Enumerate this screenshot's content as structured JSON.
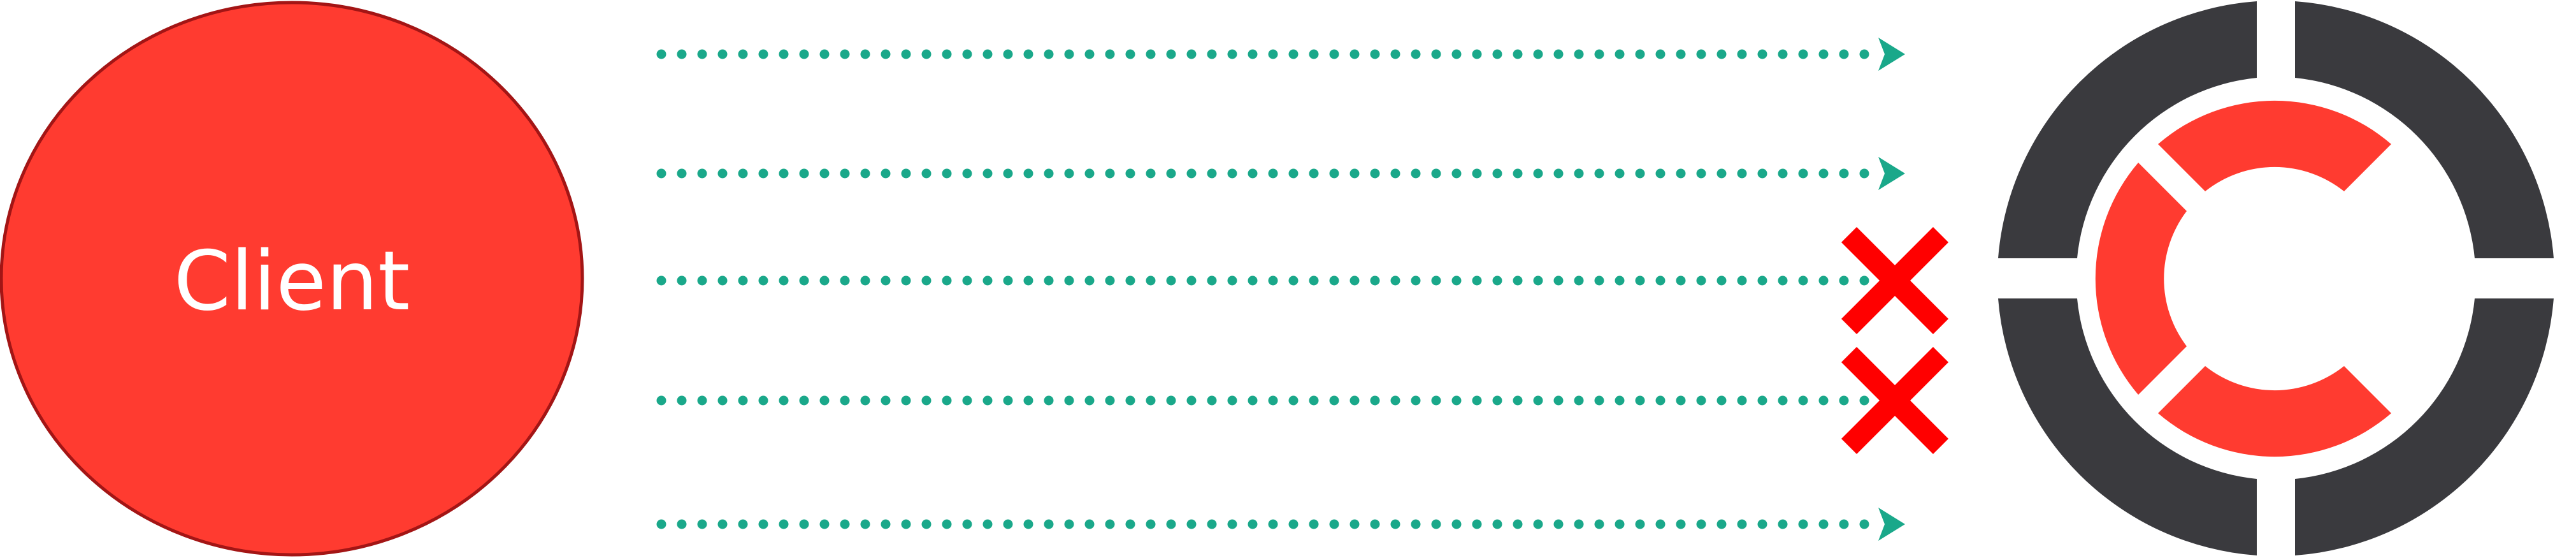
{
  "client": {
    "label": "Client",
    "fill_color": "#ff3b30",
    "stroke_color": "#a31515"
  },
  "requests": [
    {
      "status": "delivered"
    },
    {
      "status": "delivered"
    },
    {
      "status": "failed"
    },
    {
      "status": "failed"
    },
    {
      "status": "delivered"
    }
  ],
  "colors": {
    "arrow": "#1aa88a",
    "failure_mark": "#ff0000",
    "server_ring": "#3a3a3e",
    "server_inner": "#ff3b30"
  },
  "icons": {
    "server": "server-logo-icon",
    "failure": "x-mark-icon",
    "arrowhead": "arrowhead-icon"
  }
}
